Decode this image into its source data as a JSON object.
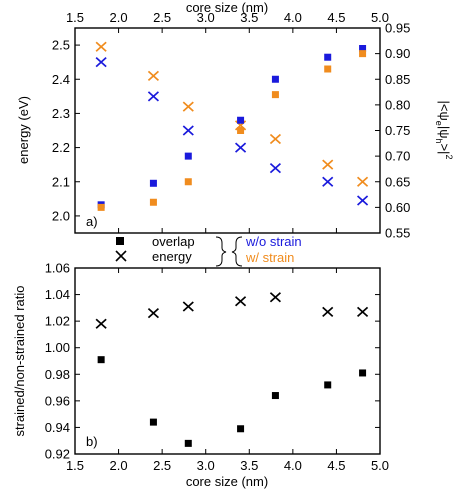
{
  "chart_data": [
    {
      "type": "scatter",
      "panel_label": "a)",
      "x_top_label": "core size (nm)",
      "xlim": [
        1.5,
        5.0
      ],
      "x_ticks": [
        1.5,
        2.0,
        2.5,
        3.0,
        3.5,
        4.0,
        4.5,
        5.0
      ],
      "ylabel_left": "energy (eV)",
      "ylim_left": [
        1.95,
        2.55
      ],
      "y_ticks_left": [
        2.0,
        2.1,
        2.2,
        2.3,
        2.4,
        2.5
      ],
      "ylabel_right": "|<ψ_e|ψ_h>|²",
      "ylabel_right_parts": {
        "open": "|<ψ",
        "sub1": "e",
        "mid": "|ψ",
        "sub2": "h",
        "close": ">|",
        "sup": "2"
      },
      "ylim_right": [
        0.55,
        0.95
      ],
      "y_ticks_right": [
        0.55,
        0.6,
        0.65,
        0.7,
        0.75,
        0.8,
        0.85,
        0.9,
        0.95
      ],
      "series": [
        {
          "color": "#1a1adc",
          "marker": "x",
          "axis": "left",
          "x": [
            1.8,
            2.4,
            2.8,
            3.4,
            3.8,
            4.4,
            4.8
          ],
          "y": [
            2.45,
            2.35,
            2.25,
            2.2,
            2.14,
            2.1,
            2.045
          ]
        },
        {
          "color": "#f08c1e",
          "marker": "x",
          "axis": "left",
          "x": [
            1.8,
            2.4,
            2.8,
            3.4,
            3.8,
            4.4,
            4.8
          ],
          "y": [
            2.495,
            2.41,
            2.32,
            2.265,
            2.225,
            2.15,
            2.1
          ]
        },
        {
          "color": "#1a1adc",
          "marker": "square",
          "axis": "right",
          "x": [
            1.8,
            2.4,
            2.8,
            3.4,
            3.8,
            4.4,
            4.8
          ],
          "y": [
            0.605,
            0.647,
            0.7,
            0.77,
            0.85,
            0.893,
            0.91
          ]
        },
        {
          "color": "#f08c1e",
          "marker": "square",
          "axis": "right",
          "x": [
            1.8,
            2.4,
            2.8,
            3.4,
            3.8,
            4.4,
            4.8
          ],
          "y": [
            0.6,
            0.61,
            0.65,
            0.75,
            0.82,
            0.87,
            0.9
          ]
        }
      ]
    },
    {
      "type": "scatter",
      "panel_label": "b)",
      "xlabel": "core size (nm)",
      "xlim": [
        1.5,
        5.0
      ],
      "x_ticks": [
        1.5,
        2.0,
        2.5,
        3.0,
        3.5,
        4.0,
        4.5,
        5.0
      ],
      "ylabel": "strained/non-strained ratio",
      "ylim": [
        0.92,
        1.06
      ],
      "y_ticks": [
        0.92,
        0.94,
        0.96,
        0.98,
        1.0,
        1.02,
        1.04,
        1.06
      ],
      "series": [
        {
          "color": "#000000",
          "marker": "x",
          "x": [
            1.8,
            2.4,
            2.8,
            3.4,
            3.8,
            4.4,
            4.8
          ],
          "y": [
            1.018,
            1.026,
            1.031,
            1.035,
            1.038,
            1.027,
            1.027
          ]
        },
        {
          "color": "#000000",
          "marker": "square",
          "x": [
            1.8,
            2.4,
            2.8,
            3.4,
            3.8,
            4.4,
            4.8
          ],
          "y": [
            0.991,
            0.944,
            0.928,
            0.939,
            0.964,
            0.972,
            0.981
          ]
        }
      ]
    }
  ],
  "legend": {
    "overlap_label": "overlap",
    "energy_label": "energy",
    "wo_strain_label": "w/o strain",
    "w_strain_label": "w/ strain",
    "wo_strain_color": "#1a1adc",
    "w_strain_color": "#f08c1e"
  }
}
